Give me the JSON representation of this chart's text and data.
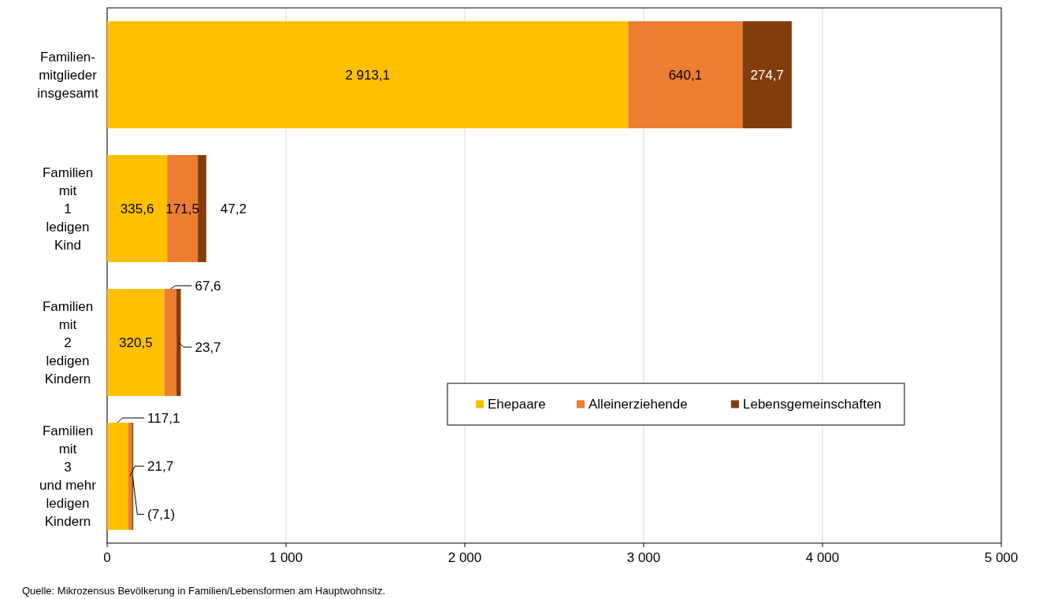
{
  "chart_data": {
    "type": "bar",
    "orientation": "horizontal",
    "stacked": true,
    "categories": [
      "Familien-\nmitglieder\ninsgesamt",
      "Familien\nmit\n1\nledigen\nKind",
      "Familien\nmit\n2\nledigen\nKindern",
      "Familien\nmit\n3\nund mehr\nledigen\nKindern"
    ],
    "series": [
      {
        "name": "Ehepaare",
        "color": "#ffc000",
        "values": [
          2913.1,
          335.6,
          320.5,
          117.1
        ],
        "value_labels": [
          "2 913,1",
          "335,6",
          "320,5",
          "117,1"
        ]
      },
      {
        "name": "Alleinerziehende",
        "color": "#ed7d31",
        "values": [
          640.1,
          171.5,
          67.6,
          21.7
        ],
        "value_labels": [
          "640,1",
          "171,5",
          "67,6",
          "21,7"
        ]
      },
      {
        "name": "Lebensgemeinschaften",
        "color": "#843c0c",
        "values": [
          274.7,
          47.2,
          23.7,
          7.1
        ],
        "value_labels": [
          "274,7",
          "47,2",
          "23,7",
          "(7,1)"
        ]
      }
    ],
    "xlim": [
      0,
      5000
    ],
    "xticks": [
      0,
      {
        "value": 1000,
        "label": "1 000"
      },
      {
        "value": 2000,
        "label": "2 000"
      },
      {
        "value": 3000,
        "label": "3 000"
      },
      {
        "value": 4000,
        "label": "4 000"
      },
      {
        "value": 5000,
        "label": "5 000"
      }
    ],
    "grid": "x",
    "legend": "bottom right",
    "annotations": [
      "Quelle: Mikrozensus Bevölkerung in Familien/Lebensformen am Hauptwohnsitz."
    ]
  }
}
